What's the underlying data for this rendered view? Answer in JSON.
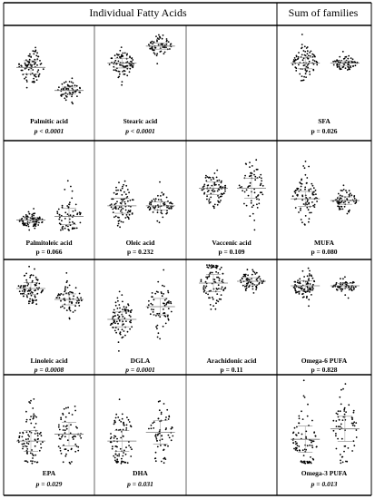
{
  "headers": {
    "left": "Individual Fatty Acids",
    "right": "Sum of families"
  },
  "chart_data": {
    "type": "scatter",
    "ylabel_visible": false,
    "panels": [
      {
        "name": "Palmitic acid",
        "p": "p < 0.0001",
        "italic": true,
        "row": 0,
        "col": 0,
        "groups": [
          {
            "median": 0.55,
            "spread": 0.26,
            "n": 85
          },
          {
            "median": 0.28,
            "spread": 0.13,
            "n": 65
          }
        ]
      },
      {
        "name": "Stearic acid",
        "p": "p < 0.0001",
        "italic": true,
        "row": 0,
        "col": 1,
        "groups": [
          {
            "median": 0.6,
            "spread": 0.19,
            "n": 85
          },
          {
            "median": 0.8,
            "spread": 0.12,
            "n": 65
          }
        ]
      },
      {
        "name": "SFA",
        "p": "p = 0.026",
        "italic": false,
        "row": 0,
        "col": 3,
        "groups": [
          {
            "median": 0.6,
            "spread": 0.22,
            "n": 85
          },
          {
            "median": 0.6,
            "spread": 0.09,
            "n": 65
          }
        ]
      },
      {
        "name": "Palmitoleic acid",
        "p": "p = 0.066",
        "italic": false,
        "row": 1,
        "col": 0,
        "groups": [
          {
            "median": 0.14,
            "spread": 0.1,
            "n": 85
          },
          {
            "median": 0.18,
            "spread": 0.3,
            "n": 65
          }
        ]
      },
      {
        "name": "Oleic acid",
        "p": "p = 0.232",
        "italic": false,
        "row": 1,
        "col": 1,
        "groups": [
          {
            "median": 0.3,
            "spread": 0.28,
            "n": 85
          },
          {
            "median": 0.3,
            "spread": 0.15,
            "n": 65
          }
        ]
      },
      {
        "name": "Vaccenic acid",
        "p": "p = 0.109",
        "italic": false,
        "row": 1,
        "col": 2,
        "groups": [
          {
            "median": 0.5,
            "spread": 0.24,
            "n": 85
          },
          {
            "median": 0.5,
            "spread": 0.38,
            "n": 65
          }
        ]
      },
      {
        "name": "MUFA",
        "p": "p = 0.080",
        "italic": false,
        "row": 1,
        "col": 3,
        "groups": [
          {
            "median": 0.38,
            "spread": 0.28,
            "n": 85
          },
          {
            "median": 0.36,
            "spread": 0.14,
            "n": 65
          }
        ]
      },
      {
        "name": "Linoleic acid",
        "p": "p = 0.0008",
        "italic": true,
        "row": 2,
        "col": 0,
        "groups": [
          {
            "median": 0.72,
            "spread": 0.22,
            "n": 85
          },
          {
            "median": 0.6,
            "spread": 0.2,
            "n": 65
          }
        ]
      },
      {
        "name": "DGLA",
        "p": "p = 0.0001",
        "italic": true,
        "row": 2,
        "col": 1,
        "groups": [
          {
            "median": 0.38,
            "spread": 0.27,
            "n": 85
          },
          {
            "median": 0.52,
            "spread": 0.3,
            "n": 65
          }
        ]
      },
      {
        "name": "Arachidonic acid",
        "p": "p = 0.11",
        "italic": false,
        "row": 2,
        "col": 2,
        "groups": [
          {
            "median": 0.78,
            "spread": 0.32,
            "n": 85
          },
          {
            "median": 0.8,
            "spread": 0.13,
            "n": 65
          }
        ]
      },
      {
        "name": "Omega-6 PUFA",
        "p": "p = 0.828",
        "italic": false,
        "row": 2,
        "col": 3,
        "groups": [
          {
            "median": 0.75,
            "spread": 0.18,
            "n": 85
          },
          {
            "median": 0.75,
            "spread": 0.09,
            "n": 65
          }
        ]
      },
      {
        "name": "EPA",
        "p": "p = 0.029",
        "italic": true,
        "row": 3,
        "col": 0,
        "groups": [
          {
            "median": 0.28,
            "spread": 0.4,
            "n": 85
          },
          {
            "median": 0.36,
            "spread": 0.45,
            "n": 65
          }
        ]
      },
      {
        "name": "DHA",
        "p": "p = 0.031",
        "italic": true,
        "row": 3,
        "col": 1,
        "groups": [
          {
            "median": 0.28,
            "spread": 0.4,
            "n": 85
          },
          {
            "median": 0.38,
            "spread": 0.45,
            "n": 65
          }
        ]
      },
      {
        "name": "Omega-3 PUFA",
        "p": "p = 0.013",
        "italic": true,
        "row": 3,
        "col": 3,
        "groups": [
          {
            "median": 0.3,
            "spread": 0.5,
            "n": 85
          },
          {
            "median": 0.42,
            "spread": 0.48,
            "n": 65
          }
        ]
      }
    ]
  }
}
